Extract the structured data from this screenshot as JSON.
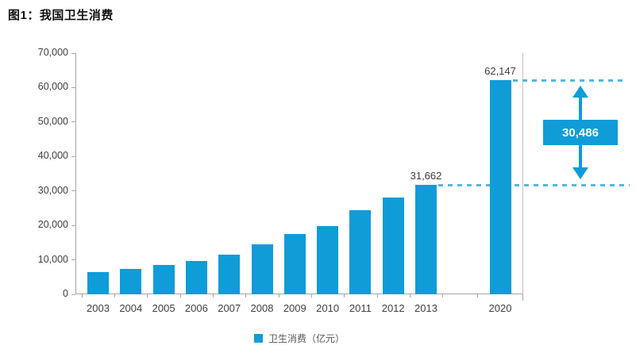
{
  "chart_data": {
    "type": "bar",
    "title": "图1：我国卫生消费",
    "categories": [
      "2003",
      "2004",
      "2005",
      "2006",
      "2007",
      "2008",
      "2009",
      "2010",
      "2011",
      "2012",
      "2013",
      "2020"
    ],
    "values": [
      6400,
      7400,
      8500,
      9700,
      11400,
      14400,
      17500,
      19900,
      24300,
      28000,
      31662,
      62147
    ],
    "gap_after_index": 10,
    "xlabel": "",
    "ylabel": "",
    "ylim": [
      0,
      70000
    ],
    "ytick_step": 10000,
    "ytick_labels": [
      "0",
      "10,000",
      "20,000",
      "30,000",
      "40,000",
      "50,000",
      "60,000",
      "70,000"
    ],
    "grid": false,
    "legend": [
      "卫生消费（亿元）"
    ],
    "legend_position": "bottom",
    "data_labels": [
      {
        "category": "2013",
        "index": 10,
        "text": "31,662"
      },
      {
        "category": "2020",
        "index": 11,
        "text": "62,147"
      }
    ],
    "annotation": {
      "text": "30,486",
      "from_category": "2013",
      "from_value": 31662,
      "to_category": "2020",
      "to_value": 62147
    }
  },
  "colors": {
    "bar": "#0f9cd7",
    "dash_line": "#55b7de",
    "annotation": "#0f9cd7",
    "annotation_text": "#ffffff",
    "axis": "#a6a6a6",
    "tick_text": "#404040",
    "data_label_text": "#3d3d3d",
    "legend_text": "#595959",
    "title_text": "#111111"
  }
}
